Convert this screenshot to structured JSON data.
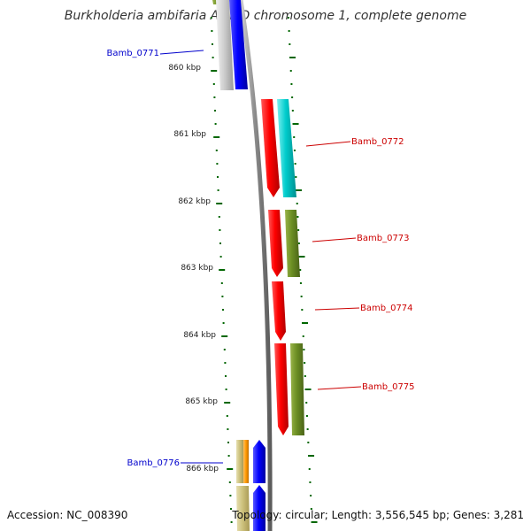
{
  "title": "Burkholderia ambifaria AMMD chromosome 1, complete genome",
  "footer": {
    "accession": "Accession: NC_008390",
    "summary": "Topology: circular; Length: 3,556,545 bp; Genes: 3,281"
  },
  "scale_labels": [
    "860 kbp",
    "861 kbp",
    "862 kbp",
    "863 kbp",
    "864 kbp",
    "865 kbp",
    "866 kbp"
  ],
  "genes": [
    {
      "name": "Bamb_0771",
      "strand": "reverse",
      "color": "#0000cc"
    },
    {
      "name": "Bamb_0772",
      "strand": "forward",
      "color": "#cc0000"
    },
    {
      "name": "Bamb_0773",
      "strand": "forward",
      "color": "#cc0000"
    },
    {
      "name": "Bamb_0774",
      "strand": "forward",
      "color": "#cc0000"
    },
    {
      "name": "Bamb_0775",
      "strand": "forward",
      "color": "#cc0000"
    },
    {
      "name": "Bamb_0776",
      "strand": "reverse",
      "color": "#0000cc"
    }
  ],
  "colors": {
    "forward_gene": "#ff0000",
    "reverse_gene": "#0000ff",
    "cyan_feature": "#00cccc",
    "olive_feature": "#6b8e23",
    "gray_feature": "#c8c8c8",
    "backbone": "#909090",
    "ticks": "#006600"
  }
}
